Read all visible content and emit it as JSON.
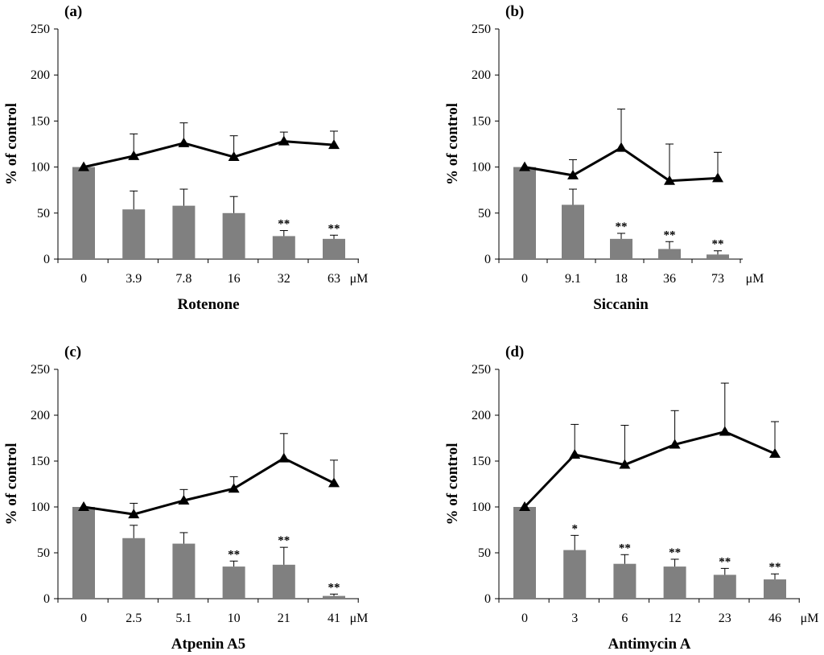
{
  "chart_data": [
    {
      "type": "bar",
      "panel_label": "(a)",
      "xlabel": "Rotenone",
      "ylabel": "% of control",
      "unit": "μM",
      "ylim": [
        0,
        250
      ],
      "yticks": [
        "0",
        "50",
        "100",
        "150",
        "200",
        "250"
      ],
      "categories": [
        "0",
        "3.9",
        "7.8",
        "16",
        "32",
        "63"
      ],
      "bars": {
        "values": [
          100,
          54,
          58,
          50,
          25,
          22
        ],
        "errors": [
          0,
          20,
          18,
          18,
          6,
          4
        ],
        "color": "#808080"
      },
      "line": {
        "values": [
          100,
          112,
          126,
          111,
          128,
          124
        ],
        "errors": [
          0,
          24,
          22,
          23,
          10,
          15
        ],
        "color": "#000000"
      },
      "significance": [
        "",
        "",
        "",
        "",
        "**",
        "**"
      ]
    },
    {
      "type": "bar",
      "panel_label": "(b)",
      "xlabel": "Siccanin",
      "ylabel": "% of control",
      "unit": "μM",
      "ylim": [
        0,
        250
      ],
      "yticks": [
        "0",
        "50",
        "100",
        "150",
        "200",
        "250"
      ],
      "categories": [
        "0",
        "9.1",
        "18",
        "36",
        "73"
      ],
      "bars": {
        "values": [
          100,
          59,
          22,
          11,
          5
        ],
        "errors": [
          0,
          17,
          6,
          8,
          4
        ],
        "color": "#808080"
      },
      "line": {
        "values": [
          100,
          91,
          121,
          85,
          88
        ],
        "errors": [
          0,
          17,
          42,
          40,
          28
        ],
        "color": "#000000"
      },
      "significance": [
        "",
        "",
        "**",
        "**",
        "**"
      ]
    },
    {
      "type": "bar",
      "panel_label": "(c)",
      "xlabel": "Atpenin A5",
      "ylabel": "% of control",
      "unit": "μM",
      "ylim": [
        0,
        250
      ],
      "yticks": [
        "0",
        "50",
        "100",
        "150",
        "200",
        "250"
      ],
      "categories": [
        "0",
        "2.5",
        "5.1",
        "10",
        "21",
        "41"
      ],
      "bars": {
        "values": [
          100,
          66,
          60,
          35,
          37,
          3
        ],
        "errors": [
          0,
          14,
          12,
          6,
          19,
          2
        ],
        "color": "#808080"
      },
      "line": {
        "values": [
          100,
          92,
          107,
          120,
          153,
          126
        ],
        "errors": [
          0,
          12,
          12,
          13,
          27,
          25
        ],
        "color": "#000000"
      },
      "significance": [
        "",
        "",
        "",
        "**",
        "**",
        "**"
      ]
    },
    {
      "type": "bar",
      "panel_label": "(d)",
      "xlabel": "Antimycin A",
      "ylabel": "% of control",
      "unit": "μM",
      "ylim": [
        0,
        250
      ],
      "yticks": [
        "0",
        "50",
        "100",
        "150",
        "200",
        "250"
      ],
      "categories": [
        "0",
        "3",
        "6",
        "12",
        "23",
        "46"
      ],
      "bars": {
        "values": [
          100,
          53,
          38,
          35,
          26,
          21
        ],
        "errors": [
          0,
          16,
          10,
          8,
          7,
          6
        ],
        "color": "#808080"
      },
      "line": {
        "values": [
          100,
          157,
          146,
          168,
          182,
          158
        ],
        "errors": [
          0,
          33,
          43,
          37,
          53,
          35
        ],
        "color": "#000000"
      },
      "significance": [
        "",
        "*",
        "**",
        "**",
        "**",
        "**"
      ]
    }
  ]
}
